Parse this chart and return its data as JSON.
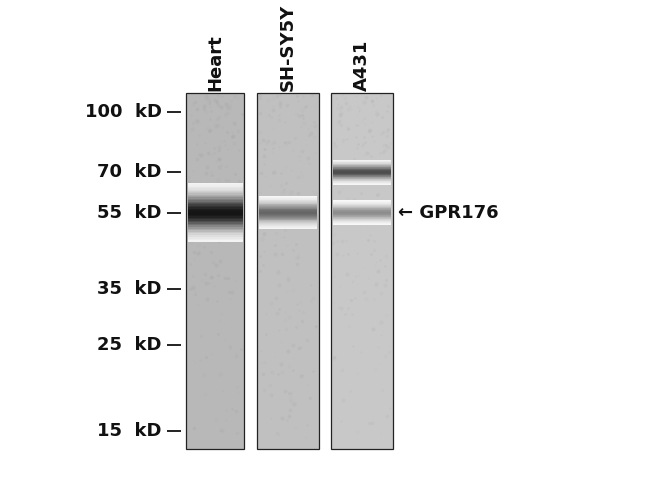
{
  "background_color": "#ffffff",
  "lane_labels": [
    "Heart",
    "SH-SY5Y",
    "A431"
  ],
  "mw_markers": [
    100,
    70,
    55,
    35,
    25,
    15
  ],
  "mw_labels": [
    "100  kD",
    "70  kD",
    "55  kD",
    "35  kD",
    "25  kD",
    "15  kD"
  ],
  "annotation_text": "← GPR176",
  "annotation_mw": 55,
  "lane_bg": [
    "#b8b8b8",
    "#c0c0c0",
    "#c8c8c8"
  ],
  "band1_mw": 55,
  "band1_darkness": 0.92,
  "band1_spread": 0.07,
  "band2_mw": 55,
  "band2_darkness": 0.6,
  "band2_spread": 0.04,
  "band3a_mw": 70,
  "band3a_darkness": 0.7,
  "band3a_spread": 0.03,
  "band3b_mw": 55,
  "band3b_darkness": 0.45,
  "band3b_spread": 0.03,
  "label_fontsize": 13,
  "tick_fontsize": 13
}
